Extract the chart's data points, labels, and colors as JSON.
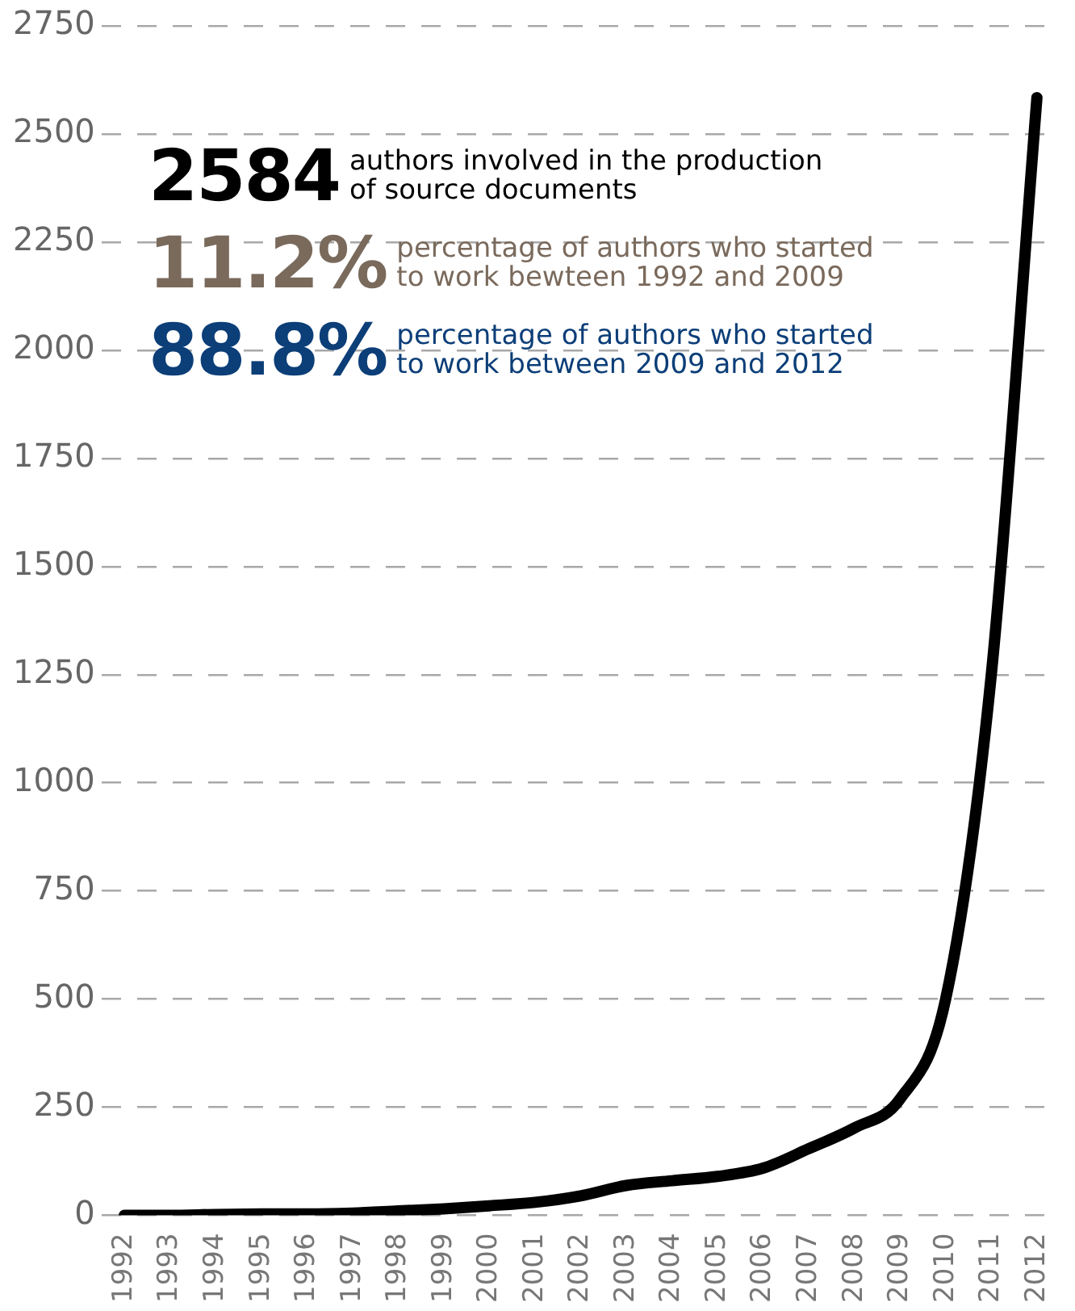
{
  "chart_data": {
    "type": "line",
    "categories": [
      "1992",
      "1993",
      "1994",
      "1995",
      "1996",
      "1997",
      "1998",
      "1999",
      "2000",
      "2001",
      "2002",
      "2003",
      "2004",
      "2005",
      "2006",
      "2007",
      "2008",
      "2009",
      "2010",
      "2011",
      "2012"
    ],
    "series": [
      {
        "color": "#000000",
        "values": [
          0,
          0,
          2,
          3,
          3,
          5,
          10,
          15,
          22,
          30,
          45,
          69,
          80,
          90,
          109,
          154,
          202,
          269,
          500,
          1250,
          2584
        ]
      }
    ],
    "ylim": [
      0,
      2750
    ],
    "yticks": [
      0,
      250,
      500,
      750,
      1000,
      1250,
      1500,
      1750,
      2000,
      2250,
      2500,
      2750
    ],
    "grid": "y",
    "legend": false,
    "marker": "none",
    "line_style": "solid",
    "annotations": [
      "2584",
      "authors involved in the production of source documents",
      "11.2%",
      "percentage of authors who started to work bewteen 1992 and 2009",
      "88.8%",
      "percentage of authors who started to work between 2009 and 2012"
    ]
  }
}
